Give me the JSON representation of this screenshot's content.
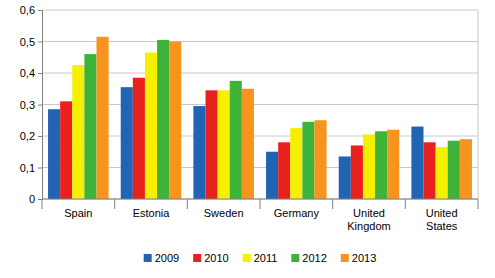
{
  "chart_data": {
    "type": "bar",
    "categories": [
      "Spain",
      "Estonia",
      "Sweden",
      "Germany",
      "United Kingdom",
      "United States"
    ],
    "series": [
      {
        "name": "2009",
        "color": "#2264b4",
        "values": [
          0.285,
          0.355,
          0.295,
          0.15,
          0.135,
          0.23
        ]
      },
      {
        "name": "2010",
        "color": "#e8201e",
        "values": [
          0.31,
          0.385,
          0.345,
          0.18,
          0.17,
          0.18
        ]
      },
      {
        "name": "2011",
        "color": "#f5f000",
        "values": [
          0.425,
          0.465,
          0.345,
          0.225,
          0.205,
          0.165
        ]
      },
      {
        "name": "2012",
        "color": "#3fb23a",
        "values": [
          0.46,
          0.505,
          0.375,
          0.245,
          0.215,
          0.185
        ]
      },
      {
        "name": "2013",
        "color": "#f7941d",
        "values": [
          0.515,
          0.5,
          0.35,
          0.25,
          0.22,
          0.19
        ]
      }
    ],
    "ylim": [
      0,
      0.6
    ],
    "yticks": [
      0,
      {
        "value": 0.1,
        "label": "0,1"
      },
      {
        "value": 0.2,
        "label": "0,2"
      },
      {
        "value": 0.3,
        "label": "0,3"
      },
      {
        "value": 0.4,
        "label": "0,4"
      },
      {
        "value": 0.5,
        "label": "0,5"
      },
      {
        "value": 0.6,
        "label": "0,6"
      }
    ],
    "grid": true,
    "legend": "bottom"
  }
}
